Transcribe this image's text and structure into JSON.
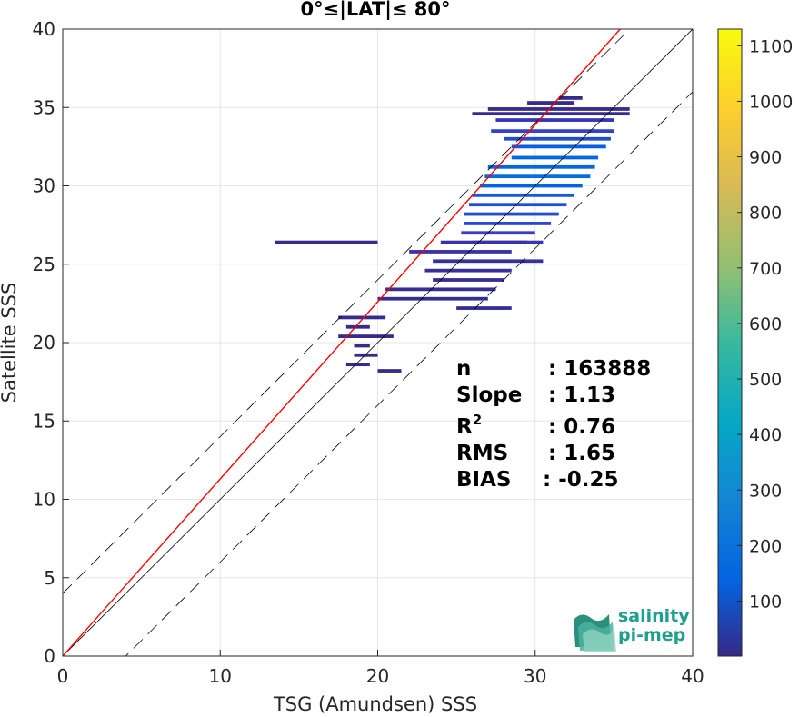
{
  "chart_data": {
    "type": "heatmap",
    "title": "0°≤|LAT|≤ 80°",
    "xlabel": "TSG (Amundsen) SSS",
    "ylabel": "Satellite SSS",
    "xlim": [
      0,
      40
    ],
    "ylim": [
      0,
      40
    ],
    "xticks": [
      "0",
      "10",
      "20",
      "30",
      "40"
    ],
    "yticks": [
      "0",
      "5",
      "10",
      "15",
      "20",
      "25",
      "30",
      "35",
      "40"
    ],
    "grid": true,
    "colorbar": {
      "range": [
        1,
        1130
      ],
      "ticks": [
        "100",
        "200",
        "300",
        "400",
        "500",
        "600",
        "700",
        "800",
        "900",
        "1000",
        "1100"
      ],
      "colormap": "parula"
    },
    "lines": {
      "identity": {
        "slope": 1,
        "intercept": 0,
        "color": "#000000"
      },
      "identity_offsets": [
        4,
        -4
      ],
      "regression": {
        "slope": 1.13,
        "intercept": 0.0,
        "color": "#ff0000"
      }
    },
    "stats": [
      {
        "label": "n",
        "value": ": 163888"
      },
      {
        "label": "Slope",
        "value": ": 1.13"
      },
      {
        "label": "R",
        "sup": "2",
        "value": ": 0.76"
      },
      {
        "label": "RMS",
        "value": ": 1.65"
      },
      {
        "label": "BIAS",
        "value": ": -0.25"
      }
    ],
    "density_segments": [
      [
        26.0,
        34.6,
        36.0,
        10
      ],
      [
        27.0,
        34.9,
        36.0,
        8
      ],
      [
        27.5,
        34.2,
        35.0,
        40
      ],
      [
        27.2,
        33.5,
        35.0,
        70
      ],
      [
        28.0,
        33.0,
        34.8,
        90
      ],
      [
        28.5,
        32.5,
        34.5,
        130
      ],
      [
        28.5,
        31.8,
        34.0,
        160
      ],
      [
        27.0,
        31.2,
        33.8,
        150
      ],
      [
        26.8,
        30.6,
        33.5,
        180
      ],
      [
        26.5,
        30.0,
        33.0,
        140
      ],
      [
        26.0,
        29.4,
        32.5,
        120
      ],
      [
        25.8,
        28.8,
        32.0,
        100
      ],
      [
        25.5,
        28.2,
        31.5,
        90
      ],
      [
        25.5,
        27.6,
        31.0,
        80
      ],
      [
        25.3,
        27.0,
        30.0,
        60
      ],
      [
        26.0,
        26.4,
        30.5,
        40
      ],
      [
        24.0,
        26.4,
        29.5,
        30
      ],
      [
        13.5,
        26.4,
        20.0,
        5
      ],
      [
        22.0,
        25.8,
        28.5,
        30
      ],
      [
        23.5,
        25.2,
        30.5,
        20
      ],
      [
        23.0,
        24.6,
        28.5,
        20
      ],
      [
        23.5,
        24.0,
        28.0,
        15
      ],
      [
        20.5,
        23.4,
        27.5,
        12
      ],
      [
        20.0,
        22.8,
        27.0,
        12
      ],
      [
        25.0,
        22.2,
        28.5,
        10
      ],
      [
        17.5,
        21.6,
        20.5,
        6
      ],
      [
        18.0,
        21.0,
        19.5,
        5
      ],
      [
        17.5,
        20.4,
        21.0,
        5
      ],
      [
        18.5,
        19.8,
        19.5,
        4
      ],
      [
        18.5,
        19.2,
        20.0,
        4
      ],
      [
        18.0,
        18.6,
        19.5,
        4
      ],
      [
        20.0,
        18.2,
        21.5,
        4
      ],
      [
        29.5,
        35.3,
        32.5,
        4
      ],
      [
        31.5,
        35.6,
        33.0,
        4
      ]
    ]
  },
  "logo": {
    "line1": "salinity",
    "line2": "pi-mep"
  }
}
